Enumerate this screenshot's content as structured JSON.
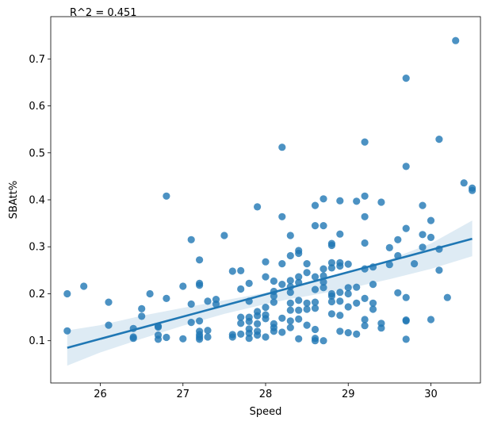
{
  "chart_data": {
    "type": "scatter",
    "title": "",
    "xlabel": "Speed",
    "ylabel": "SBAtt%",
    "annotation": "R^2 = 0.451",
    "xlim": [
      25.4,
      30.6
    ],
    "ylim": [
      0.01,
      0.79
    ],
    "xticks": [
      26,
      27,
      28,
      29,
      30
    ],
    "yticks": [
      0.1,
      0.2,
      0.3,
      0.4,
      0.5,
      0.6,
      0.7
    ],
    "grid": false,
    "legend": "none",
    "colors": {
      "points": "#1f77b4",
      "line": "#1f77b4",
      "band": "#1f77b4"
    },
    "regression": {
      "x": [
        25.6,
        30.5
      ],
      "y": [
        0.085,
        0.317
      ]
    },
    "confidence_band": {
      "x": [
        25.6,
        26.0,
        26.5,
        27.0,
        27.5,
        28.0,
        28.3,
        28.6,
        29.0,
        29.5,
        30.0,
        30.5
      ],
      "lower": [
        0.047,
        0.075,
        0.104,
        0.132,
        0.157,
        0.178,
        0.189,
        0.198,
        0.211,
        0.231,
        0.253,
        0.28
      ],
      "upper": [
        0.122,
        0.133,
        0.153,
        0.17,
        0.186,
        0.202,
        0.214,
        0.226,
        0.245,
        0.273,
        0.307,
        0.356
      ]
    },
    "points": [
      [
        25.6,
        0.2
      ],
      [
        25.6,
        0.121
      ],
      [
        25.8,
        0.216
      ],
      [
        26.1,
        0.182
      ],
      [
        26.1,
        0.133
      ],
      [
        26.4,
        0.126
      ],
      [
        26.4,
        0.108
      ],
      [
        26.4,
        0.105
      ],
      [
        26.5,
        0.168
      ],
      [
        26.5,
        0.152
      ],
      [
        26.6,
        0.2
      ],
      [
        26.7,
        0.131
      ],
      [
        26.7,
        0.129
      ],
      [
        26.7,
        0.112
      ],
      [
        26.7,
        0.103
      ],
      [
        26.8,
        0.408
      ],
      [
        26.8,
        0.19
      ],
      [
        26.8,
        0.107
      ],
      [
        27.0,
        0.216
      ],
      [
        27.0,
        0.104
      ],
      [
        27.1,
        0.315
      ],
      [
        27.1,
        0.178
      ],
      [
        27.1,
        0.139
      ],
      [
        27.2,
        0.272
      ],
      [
        27.2,
        0.222
      ],
      [
        27.2,
        0.218
      ],
      [
        27.2,
        0.142
      ],
      [
        27.2,
        0.12
      ],
      [
        27.2,
        0.113
      ],
      [
        27.2,
        0.108
      ],
      [
        27.2,
        0.103
      ],
      [
        27.3,
        0.184
      ],
      [
        27.3,
        0.122
      ],
      [
        27.3,
        0.108
      ],
      [
        27.4,
        0.188
      ],
      [
        27.4,
        0.178
      ],
      [
        27.5,
        0.324
      ],
      [
        27.6,
        0.248
      ],
      [
        27.6,
        0.113
      ],
      [
        27.6,
        0.108
      ],
      [
        27.7,
        0.249
      ],
      [
        27.7,
        0.21
      ],
      [
        27.7,
        0.15
      ],
      [
        27.7,
        0.137
      ],
      [
        27.7,
        0.114
      ],
      [
        27.8,
        0.222
      ],
      [
        27.8,
        0.184
      ],
      [
        27.8,
        0.15
      ],
      [
        27.8,
        0.141
      ],
      [
        27.8,
        0.125
      ],
      [
        27.8,
        0.116
      ],
      [
        27.8,
        0.105
      ],
      [
        27.9,
        0.385
      ],
      [
        27.9,
        0.162
      ],
      [
        27.9,
        0.153
      ],
      [
        27.9,
        0.136
      ],
      [
        27.9,
        0.12
      ],
      [
        27.9,
        0.112
      ],
      [
        28.0,
        0.268
      ],
      [
        28.0,
        0.236
      ],
      [
        28.0,
        0.171
      ],
      [
        28.0,
        0.155
      ],
      [
        28.0,
        0.147
      ],
      [
        28.0,
        0.108
      ],
      [
        28.1,
        0.227
      ],
      [
        28.1,
        0.205
      ],
      [
        28.1,
        0.195
      ],
      [
        28.1,
        0.182
      ],
      [
        28.1,
        0.136
      ],
      [
        28.1,
        0.128
      ],
      [
        28.1,
        0.12
      ],
      [
        28.2,
        0.512
      ],
      [
        28.2,
        0.364
      ],
      [
        28.2,
        0.264
      ],
      [
        28.2,
        0.22
      ],
      [
        28.2,
        0.148
      ],
      [
        28.2,
        0.118
      ],
      [
        28.3,
        0.324
      ],
      [
        28.3,
        0.281
      ],
      [
        28.3,
        0.228
      ],
      [
        28.3,
        0.215
      ],
      [
        28.3,
        0.203
      ],
      [
        28.3,
        0.18
      ],
      [
        28.3,
        0.165
      ],
      [
        28.3,
        0.142
      ],
      [
        28.3,
        0.128
      ],
      [
        28.4,
        0.292
      ],
      [
        28.4,
        0.286
      ],
      [
        28.4,
        0.236
      ],
      [
        28.4,
        0.224
      ],
      [
        28.4,
        0.186
      ],
      [
        28.4,
        0.165
      ],
      [
        28.4,
        0.146
      ],
      [
        28.4,
        0.104
      ],
      [
        28.5,
        0.264
      ],
      [
        28.5,
        0.245
      ],
      [
        28.5,
        0.18
      ],
      [
        28.5,
        0.167
      ],
      [
        28.5,
        0.133
      ],
      [
        28.6,
        0.388
      ],
      [
        28.6,
        0.345
      ],
      [
        28.6,
        0.236
      ],
      [
        28.6,
        0.209
      ],
      [
        28.6,
        0.182
      ],
      [
        28.6,
        0.169
      ],
      [
        28.6,
        0.124
      ],
      [
        28.6,
        0.105
      ],
      [
        28.6,
        0.1
      ],
      [
        28.7,
        0.402
      ],
      [
        28.7,
        0.345
      ],
      [
        28.7,
        0.253
      ],
      [
        28.7,
        0.238
      ],
      [
        28.7,
        0.225
      ],
      [
        28.7,
        0.213
      ],
      [
        28.7,
        0.1
      ],
      [
        28.8,
        0.307
      ],
      [
        28.8,
        0.303
      ],
      [
        28.8,
        0.266
      ],
      [
        28.8,
        0.255
      ],
      [
        28.8,
        0.2
      ],
      [
        28.8,
        0.195
      ],
      [
        28.8,
        0.183
      ],
      [
        28.8,
        0.157
      ],
      [
        28.9,
        0.398
      ],
      [
        28.9,
        0.327
      ],
      [
        28.9,
        0.266
      ],
      [
        28.9,
        0.259
      ],
      [
        28.9,
        0.203
      ],
      [
        28.9,
        0.184
      ],
      [
        28.9,
        0.154
      ],
      [
        28.9,
        0.12
      ],
      [
        29.0,
        0.263
      ],
      [
        29.0,
        0.213
      ],
      [
        29.0,
        0.2
      ],
      [
        29.0,
        0.172
      ],
      [
        29.0,
        0.117
      ],
      [
        29.1,
        0.397
      ],
      [
        29.1,
        0.214
      ],
      [
        29.1,
        0.18
      ],
      [
        29.1,
        0.114
      ],
      [
        29.2,
        0.523
      ],
      [
        29.2,
        0.408
      ],
      [
        29.2,
        0.364
      ],
      [
        29.2,
        0.308
      ],
      [
        29.2,
        0.253
      ],
      [
        29.2,
        0.19
      ],
      [
        29.2,
        0.145
      ],
      [
        29.2,
        0.132
      ],
      [
        29.3,
        0.257
      ],
      [
        29.3,
        0.22
      ],
      [
        29.3,
        0.18
      ],
      [
        29.3,
        0.167
      ],
      [
        29.4,
        0.395
      ],
      [
        29.4,
        0.137
      ],
      [
        29.4,
        0.127
      ],
      [
        29.5,
        0.298
      ],
      [
        29.5,
        0.262
      ],
      [
        29.6,
        0.315
      ],
      [
        29.6,
        0.281
      ],
      [
        29.6,
        0.202
      ],
      [
        29.7,
        0.659
      ],
      [
        29.7,
        0.471
      ],
      [
        29.7,
        0.339
      ],
      [
        29.7,
        0.192
      ],
      [
        29.7,
        0.144
      ],
      [
        29.7,
        0.142
      ],
      [
        29.7,
        0.103
      ],
      [
        29.8,
        0.264
      ],
      [
        29.9,
        0.388
      ],
      [
        29.9,
        0.326
      ],
      [
        29.9,
        0.299
      ],
      [
        30.0,
        0.356
      ],
      [
        30.0,
        0.32
      ],
      [
        30.0,
        0.145
      ],
      [
        30.1,
        0.529
      ],
      [
        30.1,
        0.295
      ],
      [
        30.1,
        0.25
      ],
      [
        30.2,
        0.192
      ],
      [
        30.3,
        0.739
      ],
      [
        30.4,
        0.436
      ],
      [
        30.5,
        0.425
      ],
      [
        30.5,
        0.42
      ]
    ]
  }
}
